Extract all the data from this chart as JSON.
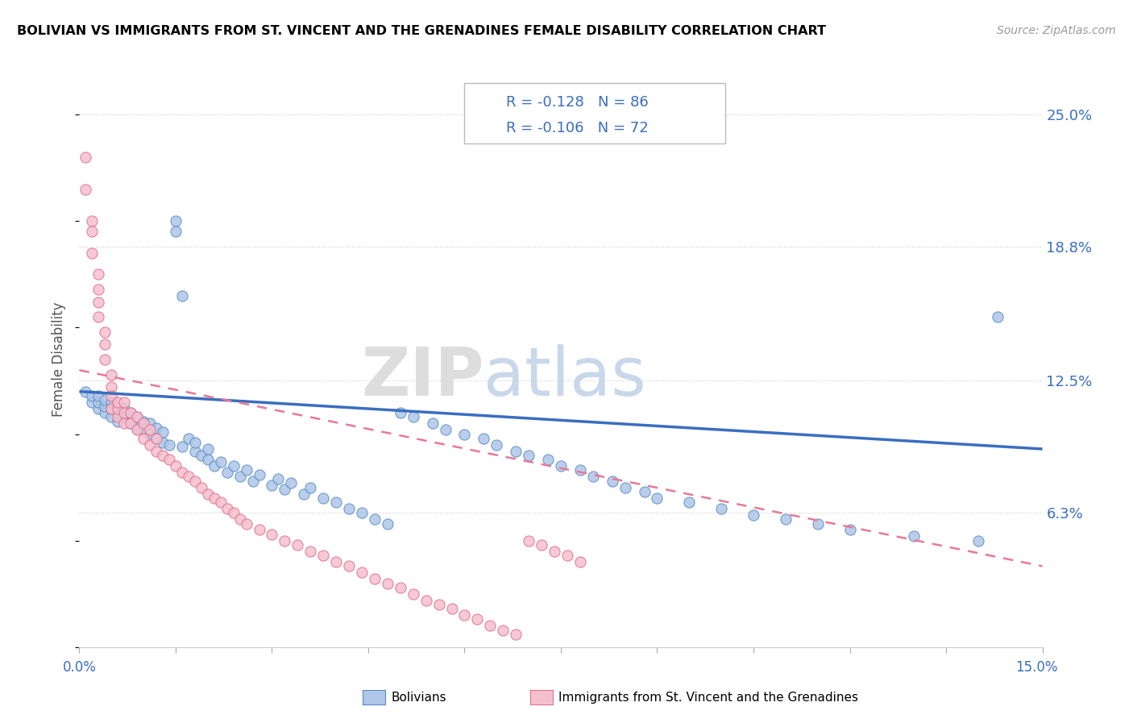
{
  "title": "BOLIVIAN VS IMMIGRANTS FROM ST. VINCENT AND THE GRENADINES FEMALE DISABILITY CORRELATION CHART",
  "source": "Source: ZipAtlas.com",
  "ylabel": "Female Disability",
  "ytick_labels": [
    "6.3%",
    "12.5%",
    "18.8%",
    "25.0%"
  ],
  "ytick_values": [
    0.063,
    0.125,
    0.188,
    0.25
  ],
  "xlim": [
    0.0,
    0.15
  ],
  "ylim": [
    0.0,
    0.27
  ],
  "legend_blue_r": "R = -0.128",
  "legend_blue_n": "N = 86",
  "legend_pink_r": "R = -0.106",
  "legend_pink_n": "N = 72",
  "legend_label_blue": "Bolivians",
  "legend_label_pink": "Immigrants from St. Vincent and the Grenadines",
  "color_blue_fill": "#aec6e8",
  "color_blue_edge": "#5b8ec4",
  "color_pink_fill": "#f5c0ce",
  "color_pink_edge": "#e07090",
  "color_blue_line": "#3a6ec0",
  "color_pink_line": "#e87898",
  "blue_line_y0": 0.12,
  "blue_line_y1": 0.093,
  "pink_line_y0": 0.13,
  "pink_line_y1": 0.038,
  "blue_x": [
    0.001,
    0.002,
    0.002,
    0.003,
    0.003,
    0.003,
    0.004,
    0.004,
    0.004,
    0.005,
    0.005,
    0.005,
    0.006,
    0.006,
    0.006,
    0.007,
    0.007,
    0.008,
    0.008,
    0.009,
    0.009,
    0.01,
    0.01,
    0.011,
    0.011,
    0.012,
    0.012,
    0.013,
    0.013,
    0.014,
    0.015,
    0.015,
    0.016,
    0.016,
    0.017,
    0.018,
    0.018,
    0.019,
    0.02,
    0.02,
    0.021,
    0.022,
    0.023,
    0.024,
    0.025,
    0.026,
    0.027,
    0.028,
    0.03,
    0.031,
    0.032,
    0.033,
    0.035,
    0.036,
    0.038,
    0.04,
    0.042,
    0.044,
    0.046,
    0.048,
    0.05,
    0.052,
    0.055,
    0.057,
    0.06,
    0.063,
    0.065,
    0.068,
    0.07,
    0.073,
    0.075,
    0.078,
    0.08,
    0.083,
    0.085,
    0.088,
    0.09,
    0.095,
    0.1,
    0.105,
    0.11,
    0.115,
    0.12,
    0.13,
    0.14,
    0.143
  ],
  "blue_y": [
    0.12,
    0.115,
    0.118,
    0.112,
    0.115,
    0.118,
    0.11,
    0.113,
    0.116,
    0.108,
    0.112,
    0.115,
    0.106,
    0.11,
    0.113,
    0.108,
    0.112,
    0.105,
    0.11,
    0.103,
    0.108,
    0.102,
    0.106,
    0.1,
    0.105,
    0.098,
    0.103,
    0.096,
    0.101,
    0.095,
    0.2,
    0.195,
    0.165,
    0.094,
    0.098,
    0.092,
    0.096,
    0.09,
    0.088,
    0.093,
    0.085,
    0.087,
    0.082,
    0.085,
    0.08,
    0.083,
    0.078,
    0.081,
    0.076,
    0.079,
    0.074,
    0.077,
    0.072,
    0.075,
    0.07,
    0.068,
    0.065,
    0.063,
    0.06,
    0.058,
    0.11,
    0.108,
    0.105,
    0.102,
    0.1,
    0.098,
    0.095,
    0.092,
    0.09,
    0.088,
    0.085,
    0.083,
    0.08,
    0.078,
    0.075,
    0.073,
    0.07,
    0.068,
    0.065,
    0.062,
    0.06,
    0.058,
    0.055,
    0.052,
    0.05,
    0.155
  ],
  "pink_x": [
    0.001,
    0.001,
    0.002,
    0.002,
    0.002,
    0.003,
    0.003,
    0.003,
    0.003,
    0.004,
    0.004,
    0.004,
    0.005,
    0.005,
    0.005,
    0.005,
    0.006,
    0.006,
    0.006,
    0.007,
    0.007,
    0.007,
    0.008,
    0.008,
    0.009,
    0.009,
    0.01,
    0.01,
    0.011,
    0.011,
    0.012,
    0.012,
    0.013,
    0.014,
    0.015,
    0.016,
    0.017,
    0.018,
    0.019,
    0.02,
    0.021,
    0.022,
    0.023,
    0.024,
    0.025,
    0.026,
    0.028,
    0.03,
    0.032,
    0.034,
    0.036,
    0.038,
    0.04,
    0.042,
    0.044,
    0.046,
    0.048,
    0.05,
    0.052,
    0.054,
    0.056,
    0.058,
    0.06,
    0.062,
    0.064,
    0.066,
    0.068,
    0.07,
    0.072,
    0.074,
    0.076,
    0.078
  ],
  "pink_y": [
    0.23,
    0.215,
    0.2,
    0.195,
    0.185,
    0.175,
    0.168,
    0.162,
    0.155,
    0.148,
    0.142,
    0.135,
    0.128,
    0.122,
    0.118,
    0.112,
    0.108,
    0.112,
    0.115,
    0.105,
    0.11,
    0.115,
    0.105,
    0.11,
    0.102,
    0.108,
    0.098,
    0.105,
    0.095,
    0.102,
    0.092,
    0.098,
    0.09,
    0.088,
    0.085,
    0.082,
    0.08,
    0.078,
    0.075,
    0.072,
    0.07,
    0.068,
    0.065,
    0.063,
    0.06,
    0.058,
    0.055,
    0.053,
    0.05,
    0.048,
    0.045,
    0.043,
    0.04,
    0.038,
    0.035,
    0.032,
    0.03,
    0.028,
    0.025,
    0.022,
    0.02,
    0.018,
    0.015,
    0.013,
    0.01,
    0.008,
    0.006,
    0.05,
    0.048,
    0.045,
    0.043,
    0.04
  ]
}
